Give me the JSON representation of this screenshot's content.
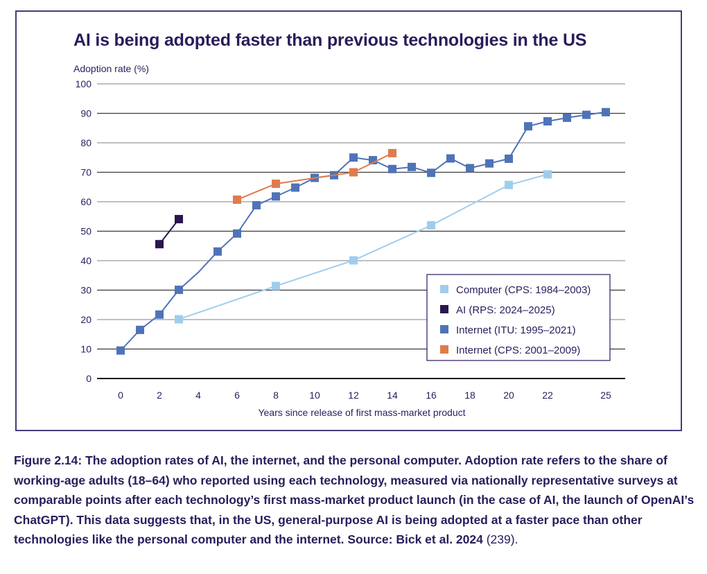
{
  "chart_data": {
    "type": "line",
    "title": "AI is being adopted faster than previous technologies in the US",
    "ylabel": "Adoption rate (%)",
    "xlabel": "Years since release of first mass-market product",
    "ylim": [
      0,
      100
    ],
    "xlim": [
      -0.5,
      26
    ],
    "yticks": [
      0,
      10,
      20,
      30,
      40,
      50,
      60,
      70,
      80,
      90,
      100
    ],
    "xticks": [
      0,
      2,
      4,
      6,
      8,
      10,
      12,
      14,
      16,
      18,
      20,
      22,
      25
    ],
    "grid": true,
    "legend_position": "bottom-right",
    "series": [
      {
        "name": "Computer (CPS: 1984–2003)",
        "color": "#9fcdee",
        "points": [
          {
            "x": 3,
            "y": 20.1,
            "marker": true
          },
          {
            "x": 8,
            "y": 31.4,
            "marker": true
          },
          {
            "x": 12,
            "y": 40.1,
            "marker": true
          },
          {
            "x": 16,
            "y": 52.0,
            "marker": true
          },
          {
            "x": 20,
            "y": 65.7,
            "marker": true
          },
          {
            "x": 22,
            "y": 69.3,
            "marker": true
          }
        ]
      },
      {
        "name": "AI (RPS: 2024–2025)",
        "color": "#2a1650",
        "points": [
          {
            "x": 2,
            "y": 45.6,
            "marker": true
          },
          {
            "x": 3,
            "y": 54.1,
            "marker": true
          }
        ]
      },
      {
        "name": "Internet (ITU: 1995–2021)",
        "color": "#4f73b7",
        "points": [
          {
            "x": 0,
            "y": 9.5,
            "marker": true
          },
          {
            "x": 1,
            "y": 16.5,
            "marker": true
          },
          {
            "x": 2,
            "y": 21.7,
            "marker": true
          },
          {
            "x": 3,
            "y": 30.1,
            "marker": true
          },
          {
            "x": 4,
            "y": 36.0,
            "marker": false
          },
          {
            "x": 5,
            "y": 43.1,
            "marker": true
          },
          {
            "x": 6,
            "y": 49.2,
            "marker": true
          },
          {
            "x": 7,
            "y": 58.8,
            "marker": true
          },
          {
            "x": 8,
            "y": 61.8,
            "marker": true
          },
          {
            "x": 9,
            "y": 64.8,
            "marker": true
          },
          {
            "x": 10,
            "y": 68.1,
            "marker": true
          },
          {
            "x": 11,
            "y": 69.0,
            "marker": true
          },
          {
            "x": 12,
            "y": 75.0,
            "marker": true
          },
          {
            "x": 13,
            "y": 74.1,
            "marker": true
          },
          {
            "x": 14,
            "y": 71.1,
            "marker": true
          },
          {
            "x": 15,
            "y": 71.8,
            "marker": true
          },
          {
            "x": 16,
            "y": 69.8,
            "marker": true
          },
          {
            "x": 17,
            "y": 74.7,
            "marker": true
          },
          {
            "x": 18,
            "y": 71.4,
            "marker": true
          },
          {
            "x": 19,
            "y": 73.0,
            "marker": true
          },
          {
            "x": 20,
            "y": 74.6,
            "marker": true
          },
          {
            "x": 21,
            "y": 85.6,
            "marker": true
          },
          {
            "x": 22,
            "y": 87.3,
            "marker": true
          },
          {
            "x": 23,
            "y": 88.5,
            "marker": true
          },
          {
            "x": 24,
            "y": 89.5,
            "marker": true
          },
          {
            "x": 25,
            "y": 90.4,
            "marker": true
          }
        ]
      },
      {
        "name": "Internet (CPS: 2001–2009)",
        "color": "#e07b4c",
        "points": [
          {
            "x": 6,
            "y": 60.7,
            "marker": true
          },
          {
            "x": 8,
            "y": 66.1,
            "marker": true
          },
          {
            "x": 12,
            "y": 70.0,
            "marker": true
          },
          {
            "x": 14,
            "y": 76.5,
            "marker": true
          }
        ]
      }
    ]
  },
  "caption": {
    "figure_label": "Figure 2.14:",
    "text": " The adoption rates of AI, the internet, and the personal computer. Adoption rate refers to the share of working-age adults (18–64) who reported using each technology, measured via nationally representative surveys at comparable points after each technology’s first mass-market product launch (in the case of AI, the launch of OpenAI’s ChatGPT). This data suggests that, in the US, general-purpose AI is being adopted at a faster pace than other technologies like the personal computer and the internet. Source: Bick et al. 2024",
    "source_ref": " (239)."
  }
}
